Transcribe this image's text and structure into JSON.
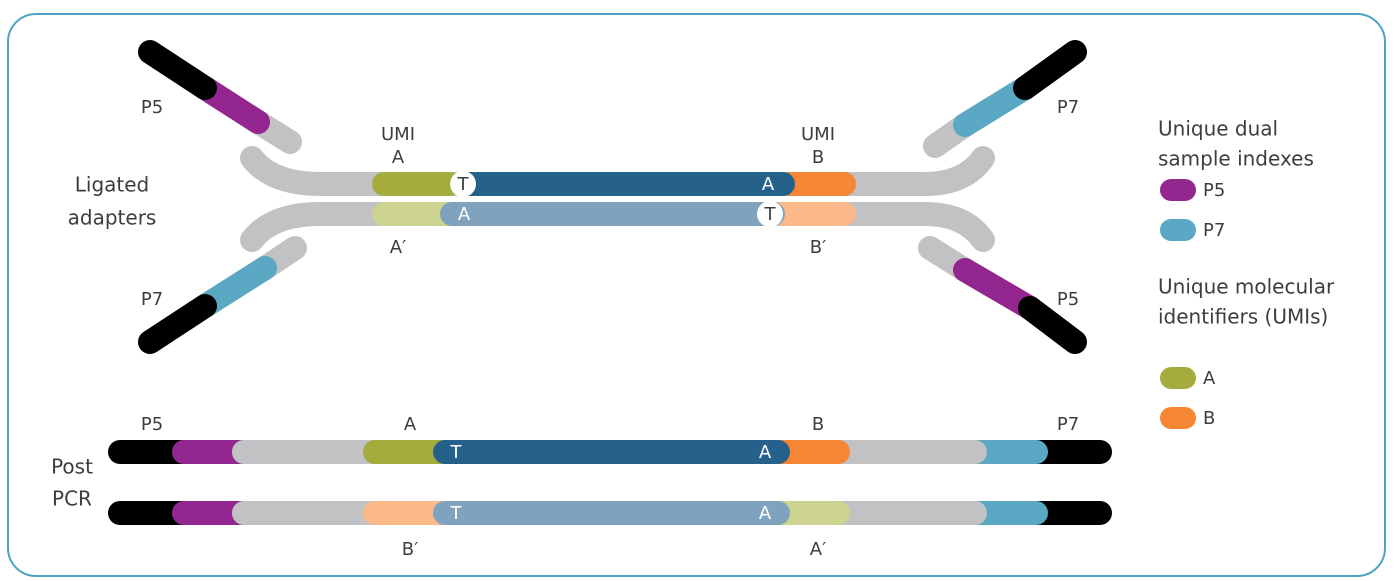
{
  "ligated": {
    "label": [
      "Ligated",
      "adapters"
    ],
    "top_left_index": "P5",
    "top_right_index": "P7",
    "bottom_left_index": "P7",
    "bottom_right_index": "P5",
    "umi_left": [
      "UMI",
      "A"
    ],
    "umi_right": [
      "UMI",
      "B"
    ],
    "umi_left_complement": "A′",
    "umi_right_complement": "B′",
    "top_strand_bases": [
      "T",
      "A"
    ],
    "bottom_strand_bases": [
      "A",
      "T"
    ]
  },
  "post_pcr": {
    "label": [
      "Post",
      "PCR"
    ],
    "left_index": "P5",
    "right_index": "P7",
    "top_umis": [
      "A",
      "B"
    ],
    "bottom_umis": [
      "B′",
      "A′"
    ],
    "top_strand_bases": [
      "T",
      "A"
    ],
    "bottom_strand_bases": [
      "T",
      "A"
    ]
  },
  "legend": {
    "sample_indexes": {
      "title": [
        "Unique dual",
        "sample indexes"
      ],
      "items": [
        "P5",
        "P7"
      ]
    },
    "umis": {
      "title": [
        "Unique molecular",
        "identifiers (UMIs)"
      ],
      "items": [
        "A",
        "B"
      ]
    }
  }
}
